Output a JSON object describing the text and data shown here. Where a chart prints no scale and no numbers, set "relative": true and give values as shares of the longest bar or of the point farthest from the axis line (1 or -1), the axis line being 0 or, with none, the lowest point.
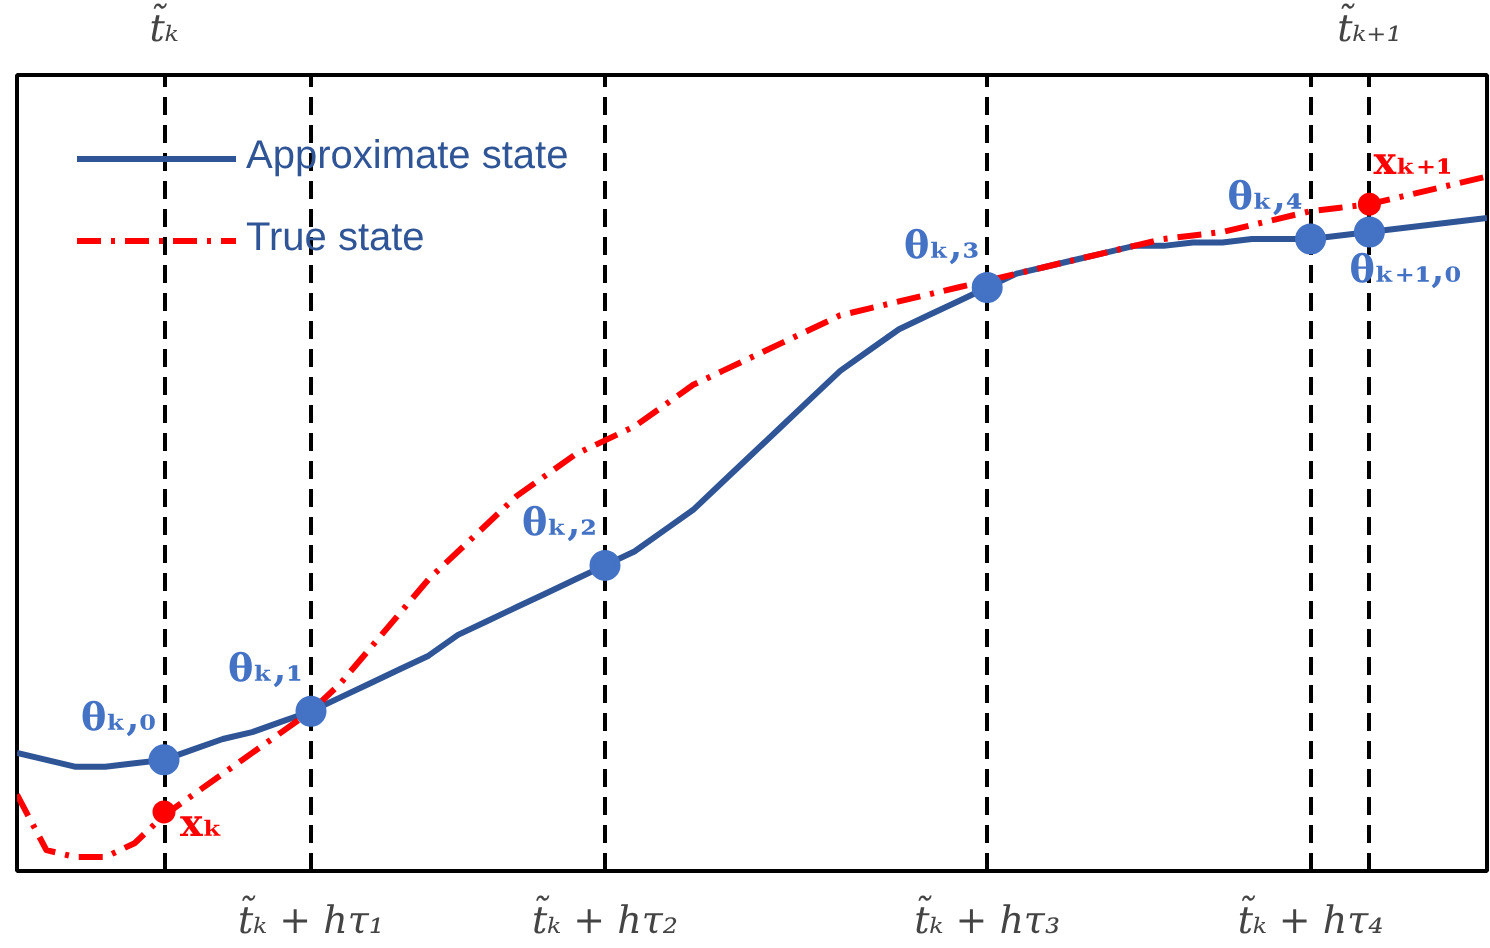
{
  "chart_data": {
    "type": "line",
    "relative": true,
    "grid": "x",
    "categories": [
      null,
      null,
      null,
      null,
      null,
      null,
      null,
      null,
      null,
      null,
      "t̃ₖ + hτ₁",
      null,
      null,
      null,
      null,
      null,
      null,
      null,
      null,
      null,
      "t̃ₖ + hτ₂",
      null,
      null,
      null,
      null,
      null,
      null,
      null,
      null,
      null,
      null,
      null,
      null,
      "t̃ₖ + hτ₃",
      null,
      null,
      null,
      null,
      null,
      null,
      null,
      null,
      null,
      null,
      "t̃ₖ + hτ₄",
      null,
      null,
      null,
      null,
      null,
      null
    ],
    "legend": "top left",
    "series": [
      {
        "name": "Approximate state",
        "color": "#2f5597",
        "line_style": "solid",
        "values": [
          0.17,
          0.16,
          0.15,
          0.15,
          0.155,
          0.16,
          0.175,
          0.19,
          0.2,
          0.215,
          0.23,
          0.25,
          0.27,
          0.29,
          0.31,
          0.34,
          0.36,
          0.38,
          0.4,
          0.42,
          0.44,
          0.46,
          0.49,
          0.52,
          0.56,
          0.6,
          0.64,
          0.68,
          0.72,
          0.75,
          0.78,
          0.8,
          0.82,
          0.84,
          0.86,
          0.87,
          0.88,
          0.89,
          0.9,
          0.9,
          0.905,
          0.905,
          0.91,
          0.91,
          0.91,
          0.915,
          0.92,
          0.925,
          0.93,
          0.935,
          0.94
        ]
      },
      {
        "name": "True state",
        "color": "#ff0000",
        "line_style": "dashdot",
        "values": [
          0.11,
          0.03,
          0.02,
          0.02,
          0.04,
          0.08,
          0.11,
          0.14,
          0.17,
          0.2,
          0.23,
          0.27,
          0.32,
          0.37,
          0.42,
          0.46,
          0.5,
          0.54,
          0.57,
          0.6,
          0.62,
          0.64,
          0.67,
          0.7,
          0.72,
          0.74,
          0.76,
          0.78,
          0.8,
          0.81,
          0.82,
          0.83,
          0.84,
          0.85,
          0.86,
          0.87,
          0.88,
          0.89,
          0.9,
          0.91,
          0.915,
          0.92,
          0.93,
          0.94,
          0.95,
          0.955,
          0.96,
          0.97,
          0.98,
          0.99,
          1.0
        ]
      },
      {
        "type": "scatter",
        "color": "#4472c4",
        "marker": "circle",
        "values": [
          null,
          null,
          null,
          null,
          null,
          0.16,
          null,
          null,
          null,
          null,
          0.23,
          null,
          null,
          null,
          null,
          null,
          null,
          null,
          null,
          null,
          0.44,
          null,
          null,
          null,
          null,
          null,
          null,
          null,
          null,
          null,
          null,
          null,
          null,
          0.84,
          null,
          null,
          null,
          null,
          null,
          null,
          null,
          null,
          null,
          null,
          0.91,
          null,
          0.92,
          null,
          null,
          null,
          null
        ]
      },
      {
        "type": "scatter",
        "color": "#ff0000",
        "marker": "circle",
        "values": [
          null,
          null,
          null,
          null,
          null,
          0.085,
          null,
          null,
          null,
          null,
          null,
          null,
          null,
          null,
          null,
          null,
          null,
          null,
          null,
          null,
          null,
          null,
          null,
          null,
          null,
          null,
          null,
          null,
          null,
          null,
          null,
          null,
          null,
          null,
          null,
          null,
          null,
          null,
          null,
          null,
          null,
          null,
          null,
          null,
          null,
          null,
          0.96,
          null,
          null,
          null,
          null
        ]
      }
    ],
    "annotations": [
      "θₖ,₀",
      "θₖ,₁",
      "θₖ,₂",
      "θₖ,₃",
      "θₖ,₄",
      "θₖ₊₁,₀",
      "xₖ",
      "xₖ₊₁",
      "t̃ₖ",
      "t̃ₖ₊₁"
    ]
  }
}
